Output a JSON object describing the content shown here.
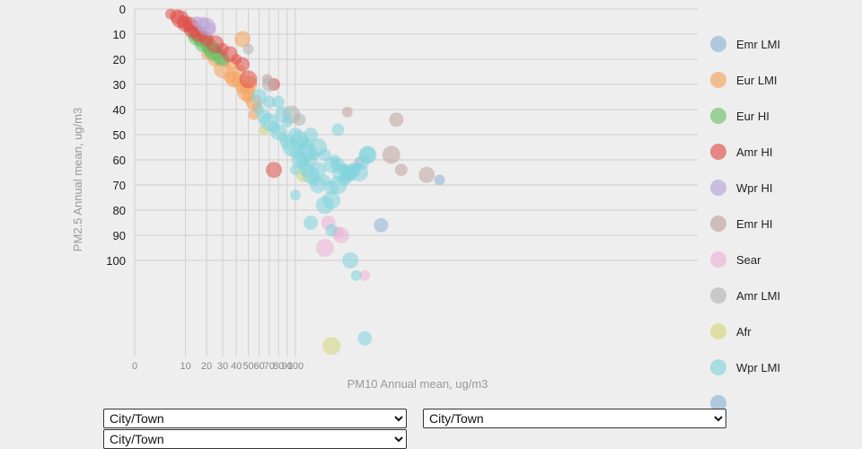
{
  "chart_data": {
    "type": "scatter",
    "title": "",
    "xlabel": "PM10 Annual mean, ug/m3",
    "ylabel": "PM2.5 Annual mean, ug/m3",
    "x_ticks": [
      0,
      10,
      20,
      30,
      40,
      50,
      60,
      70,
      80,
      90,
      100
    ],
    "y_ticks": [
      0,
      10,
      20,
      30,
      40,
      50,
      60,
      70,
      80,
      90,
      100
    ],
    "x_scale": "sqrt",
    "y_scale": "linear",
    "y_inverted": true,
    "grid": true,
    "legend_position": "right",
    "series": [
      {
        "name": "Emr LMI",
        "color": "#8fb3d6",
        "points": [
          [
            360,
            68
          ],
          [
            235,
            86
          ]
        ]
      },
      {
        "name": "Eur LMI",
        "color": "#f5a35a",
        "points": [
          [
            20,
            18
          ],
          [
            25,
            20
          ],
          [
            30,
            24
          ],
          [
            35,
            27
          ],
          [
            38,
            28
          ],
          [
            40,
            29
          ],
          [
            45,
            31
          ],
          [
            48,
            33
          ],
          [
            50,
            35
          ],
          [
            55,
            37
          ],
          [
            58,
            39
          ],
          [
            42,
            25
          ],
          [
            50,
            30
          ],
          [
            36,
            22
          ],
          [
            45,
            12
          ],
          [
            55,
            42
          ]
        ]
      },
      {
        "name": "Eur HI",
        "color": "#6cc16c",
        "points": [
          [
            12,
            8
          ],
          [
            14,
            10
          ],
          [
            15,
            11
          ],
          [
            16,
            12
          ],
          [
            18,
            14
          ],
          [
            20,
            15
          ],
          [
            22,
            16
          ],
          [
            24,
            17
          ],
          [
            26,
            18
          ],
          [
            28,
            19
          ],
          [
            25,
            16
          ],
          [
            30,
            20
          ],
          [
            18,
            12
          ],
          [
            20,
            13
          ],
          [
            22,
            15
          ]
        ]
      },
      {
        "name": "Amr HI",
        "color": "#e0504d",
        "points": [
          [
            5,
            2
          ],
          [
            7,
            3
          ],
          [
            8,
            4
          ],
          [
            9,
            5
          ],
          [
            10,
            6
          ],
          [
            11,
            7
          ],
          [
            12,
            6
          ],
          [
            13,
            8
          ],
          [
            14,
            9
          ],
          [
            16,
            10
          ],
          [
            18,
            11
          ],
          [
            20,
            12
          ],
          [
            25,
            14
          ],
          [
            30,
            16
          ],
          [
            35,
            18
          ],
          [
            40,
            20
          ],
          [
            45,
            22
          ],
          [
            50,
            28
          ],
          [
            75,
            30
          ],
          [
            75,
            64
          ]
        ]
      },
      {
        "name": "Wpr HI",
        "color": "#b9a3d8",
        "points": [
          [
            15,
            5
          ],
          [
            18,
            6
          ],
          [
            20,
            7
          ],
          [
            22,
            8
          ]
        ]
      },
      {
        "name": "Emr HI",
        "color": "#bfa39f",
        "points": [
          [
            175,
            41
          ],
          [
            265,
            44
          ],
          [
            255,
            58
          ],
          [
            275,
            64
          ],
          [
            330,
            66
          ],
          [
            68,
            28
          ]
        ]
      },
      {
        "name": "Sear",
        "color": "#efb0d7",
        "points": [
          [
            195,
            61
          ],
          [
            145,
            85
          ],
          [
            140,
            95
          ],
          [
            160,
            89
          ],
          [
            165,
            90
          ],
          [
            205,
            106
          ]
        ]
      },
      {
        "name": "Amr LMI",
        "color": "#b3b3b3",
        "points": [
          [
            50,
            16
          ],
          [
            70,
            30
          ],
          [
            95,
            42
          ],
          [
            105,
            44
          ]
        ]
      },
      {
        "name": "Afr",
        "color": "#d6d57a",
        "points": [
          [
            65,
            48
          ],
          [
            110,
            66
          ],
          [
            150,
            134
          ]
        ]
      },
      {
        "name": "Wpr LMI",
        "color": "#82d4dc",
        "points": [
          [
            60,
            40
          ],
          [
            65,
            43
          ],
          [
            70,
            45
          ],
          [
            75,
            47
          ],
          [
            80,
            49
          ],
          [
            85,
            51
          ],
          [
            90,
            53
          ],
          [
            95,
            55
          ],
          [
            100,
            57
          ],
          [
            105,
            60
          ],
          [
            110,
            62
          ],
          [
            115,
            64
          ],
          [
            120,
            66
          ],
          [
            125,
            68
          ],
          [
            130,
            70
          ],
          [
            100,
            64
          ],
          [
            110,
            60
          ],
          [
            115,
            57
          ],
          [
            120,
            60
          ],
          [
            130,
            64
          ],
          [
            140,
            68
          ],
          [
            150,
            71
          ],
          [
            160,
            70
          ],
          [
            170,
            68
          ],
          [
            180,
            65
          ],
          [
            190,
            63
          ],
          [
            200,
            61
          ],
          [
            210,
            58
          ],
          [
            80,
            37
          ],
          [
            85,
            42
          ],
          [
            90,
            45
          ],
          [
            100,
            50
          ],
          [
            105,
            52
          ],
          [
            110,
            53
          ],
          [
            115,
            55
          ],
          [
            125,
            58
          ],
          [
            120,
            50
          ],
          [
            130,
            55
          ],
          [
            140,
            58
          ],
          [
            150,
            62
          ],
          [
            155,
            60
          ],
          [
            160,
            62
          ],
          [
            165,
            65
          ],
          [
            170,
            64
          ],
          [
            175,
            66
          ],
          [
            180,
            66
          ],
          [
            185,
            64
          ],
          [
            195,
            65
          ],
          [
            160,
            48
          ],
          [
            210,
            58
          ],
          [
            100,
            74
          ],
          [
            120,
            85
          ],
          [
            140,
            78
          ],
          [
            150,
            88
          ],
          [
            180,
            100
          ],
          [
            190,
            106
          ],
          [
            205,
            131
          ],
          [
            150,
            76
          ],
          [
            70,
            37
          ],
          [
            60,
            35
          ]
        ]
      }
    ],
    "legend": [
      "Emr LMI",
      "Eur LMI",
      "Eur HI",
      "Amr HI",
      "Wpr HI",
      "Emr HI",
      "Sear",
      "Amr LMI",
      "Afr",
      "Wpr LMI",
      ""
    ]
  },
  "controls": {
    "select_1": {
      "value": "City/Town",
      "options": [
        "City/Town"
      ]
    },
    "select_2": {
      "value": "City/Town",
      "options": [
        "City/Town"
      ]
    },
    "select_3": {
      "value": "City/Town",
      "options": [
        "City/Town"
      ]
    }
  }
}
